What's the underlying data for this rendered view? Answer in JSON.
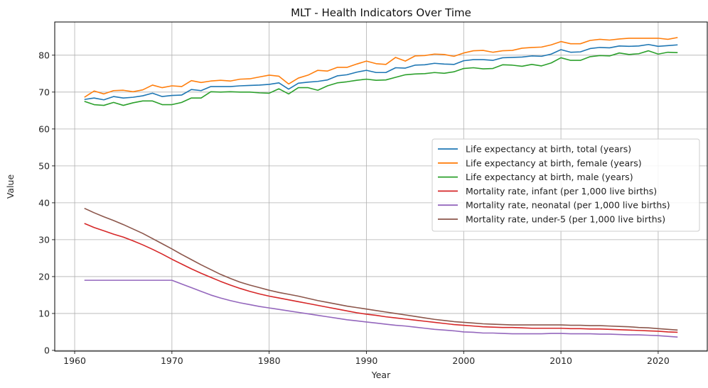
{
  "chart_data": {
    "type": "line",
    "title": "MLT - Health Indicators Over Time",
    "xlabel": "Year",
    "ylabel": "Value",
    "xlim": [
      1957.95,
      2025.05
    ],
    "ylim": [
      -0.2,
      89.0
    ],
    "xticks": [
      1960,
      1970,
      1980,
      1990,
      2000,
      2010,
      2020
    ],
    "yticks": [
      0,
      10,
      20,
      30,
      40,
      50,
      60,
      70,
      80
    ],
    "grid": true,
    "legend_position": "center-right",
    "x": [
      1961,
      1962,
      1963,
      1964,
      1965,
      1966,
      1967,
      1968,
      1969,
      1970,
      1971,
      1972,
      1973,
      1974,
      1975,
      1976,
      1977,
      1978,
      1979,
      1980,
      1981,
      1982,
      1983,
      1984,
      1985,
      1986,
      1987,
      1988,
      1989,
      1990,
      1991,
      1992,
      1993,
      1994,
      1995,
      1996,
      1997,
      1998,
      1999,
      2000,
      2001,
      2002,
      2003,
      2004,
      2005,
      2006,
      2007,
      2008,
      2009,
      2010,
      2011,
      2012,
      2013,
      2014,
      2015,
      2016,
      2017,
      2018,
      2019,
      2020,
      2021,
      2022
    ],
    "series": [
      {
        "name": "Life expectancy at birth, total (years)",
        "color": "#1f77b4",
        "values": [
          68.0,
          68.4,
          67.9,
          68.8,
          68.4,
          68.6,
          69.0,
          69.7,
          68.8,
          69.1,
          69.2,
          70.7,
          70.4,
          71.5,
          71.5,
          71.5,
          71.7,
          71.8,
          71.9,
          72.1,
          72.5,
          70.8,
          72.4,
          72.7,
          72.9,
          73.3,
          74.4,
          74.7,
          75.4,
          75.9,
          75.3,
          75.3,
          76.6,
          76.5,
          77.3,
          77.4,
          77.8,
          77.6,
          77.5,
          78.5,
          78.8,
          78.8,
          78.6,
          79.3,
          79.4,
          79.5,
          79.8,
          79.7,
          80.3,
          81.5,
          80.8,
          80.9,
          81.8,
          82.1,
          82.0,
          82.5,
          82.4,
          82.5,
          82.9,
          82.4,
          82.6,
          82.8
        ]
      },
      {
        "name": "Life expectancy at birth, female (years)",
        "color": "#ff7f0e",
        "values": [
          68.6,
          70.3,
          69.5,
          70.4,
          70.5,
          70.1,
          70.6,
          71.9,
          71.2,
          71.7,
          71.5,
          73.1,
          72.6,
          73.0,
          73.2,
          73.0,
          73.5,
          73.6,
          74.1,
          74.6,
          74.3,
          72.2,
          73.8,
          74.6,
          75.9,
          75.7,
          76.7,
          76.7,
          77.6,
          78.4,
          77.7,
          77.5,
          79.4,
          78.4,
          79.8,
          79.9,
          80.3,
          80.2,
          79.7,
          80.6,
          81.2,
          81.3,
          80.8,
          81.2,
          81.3,
          81.9,
          82.1,
          82.2,
          82.8,
          83.7,
          83.1,
          83.1,
          84.0,
          84.3,
          84.1,
          84.4,
          84.6,
          84.6,
          84.6,
          84.6,
          84.3,
          84.8
        ]
      },
      {
        "name": "Life expectancy at birth, male (years)",
        "color": "#2ca02c",
        "values": [
          67.5,
          66.6,
          66.4,
          67.2,
          66.4,
          67.1,
          67.6,
          67.6,
          66.6,
          66.6,
          67.2,
          68.4,
          68.4,
          70.1,
          70.0,
          70.1,
          70.0,
          70.0,
          69.8,
          69.7,
          70.9,
          69.5,
          71.2,
          71.2,
          70.5,
          71.7,
          72.5,
          72.8,
          73.2,
          73.5,
          73.2,
          73.3,
          74.0,
          74.7,
          74.9,
          75.0,
          75.3,
          75.1,
          75.5,
          76.4,
          76.6,
          76.3,
          76.4,
          77.4,
          77.3,
          77.0,
          77.5,
          77.1,
          77.9,
          79.3,
          78.6,
          78.6,
          79.6,
          79.9,
          79.8,
          80.6,
          80.2,
          80.4,
          81.2,
          80.3,
          80.8,
          80.7
        ]
      },
      {
        "name": "Mortality rate, infant (per 1,000 live births)",
        "color": "#d62728",
        "values": [
          34.4,
          33.3,
          32.4,
          31.5,
          30.7,
          29.7,
          28.6,
          27.4,
          26.1,
          24.7,
          23.4,
          22.1,
          20.9,
          19.8,
          18.7,
          17.7,
          16.8,
          16.0,
          15.3,
          14.7,
          14.2,
          13.7,
          13.2,
          12.7,
          12.2,
          11.7,
          11.2,
          10.7,
          10.2,
          9.8,
          9.5,
          9.1,
          8.8,
          8.5,
          8.2,
          7.9,
          7.6,
          7.3,
          7.0,
          6.8,
          6.6,
          6.4,
          6.3,
          6.2,
          6.2,
          6.1,
          6.0,
          6.0,
          6.0,
          6.0,
          5.9,
          5.9,
          5.8,
          5.8,
          5.7,
          5.6,
          5.5,
          5.4,
          5.3,
          5.2,
          5.0,
          4.9
        ]
      },
      {
        "name": "Mortality rate, neonatal (per 1,000 live births)",
        "color": "#9467bd",
        "values": [
          19.0,
          19.0,
          19.0,
          19.0,
          19.0,
          19.0,
          19.0,
          19.0,
          19.0,
          19.0,
          18.0,
          17.0,
          16.0,
          15.0,
          14.2,
          13.5,
          12.9,
          12.4,
          11.9,
          11.5,
          11.1,
          10.7,
          10.3,
          9.9,
          9.5,
          9.1,
          8.7,
          8.3,
          8.0,
          7.7,
          7.4,
          7.1,
          6.8,
          6.6,
          6.3,
          6.0,
          5.7,
          5.5,
          5.3,
          5.0,
          4.9,
          4.7,
          4.7,
          4.6,
          4.5,
          4.5,
          4.5,
          4.5,
          4.6,
          4.6,
          4.5,
          4.5,
          4.5,
          4.4,
          4.4,
          4.3,
          4.2,
          4.2,
          4.1,
          4.0,
          3.8,
          3.6
        ]
      },
      {
        "name": "Mortality rate, under-5 (per 1,000 live births)",
        "color": "#8c564b",
        "values": [
          38.5,
          37.3,
          36.2,
          35.2,
          34.1,
          32.9,
          31.7,
          30.3,
          28.9,
          27.5,
          26.0,
          24.6,
          23.2,
          21.9,
          20.6,
          19.5,
          18.5,
          17.7,
          17.0,
          16.3,
          15.7,
          15.2,
          14.7,
          14.1,
          13.5,
          13.0,
          12.5,
          12.0,
          11.6,
          11.2,
          10.8,
          10.4,
          10.0,
          9.6,
          9.2,
          8.8,
          8.4,
          8.1,
          7.8,
          7.6,
          7.4,
          7.2,
          7.1,
          7.0,
          6.9,
          6.9,
          6.9,
          6.9,
          6.9,
          6.9,
          6.8,
          6.8,
          6.7,
          6.7,
          6.6,
          6.5,
          6.4,
          6.2,
          6.1,
          5.9,
          5.7,
          5.5
        ]
      }
    ]
  }
}
